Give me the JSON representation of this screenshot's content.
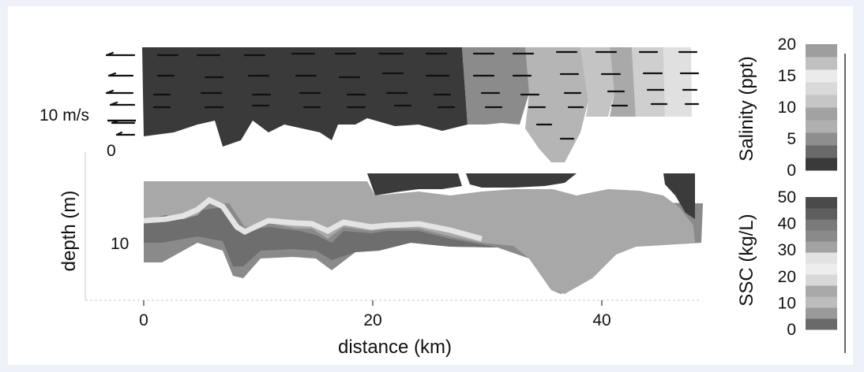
{
  "chart_data": {
    "type": "heatmap",
    "title": "",
    "xlabel": "distance (km)",
    "ylabel": "depth (m)",
    "x_ticks": [
      0,
      20,
      40
    ],
    "xlim": [
      -5,
      48
    ],
    "depth_ticks": [
      0,
      10
    ],
    "velocity_scale_label": "10 m/s",
    "panels": [
      {
        "name": "salinity",
        "colorbar_label": "Salinity (ppt)",
        "colorbar_ticks": [
          0,
          5,
          10,
          15,
          20
        ],
        "clim": [
          0,
          20
        ]
      },
      {
        "name": "ssc",
        "colorbar_label": "SSC (kg/L)",
        "colorbar_ticks": [
          0,
          10,
          20,
          30,
          40,
          50
        ],
        "clim": [
          0,
          50
        ]
      }
    ]
  }
}
